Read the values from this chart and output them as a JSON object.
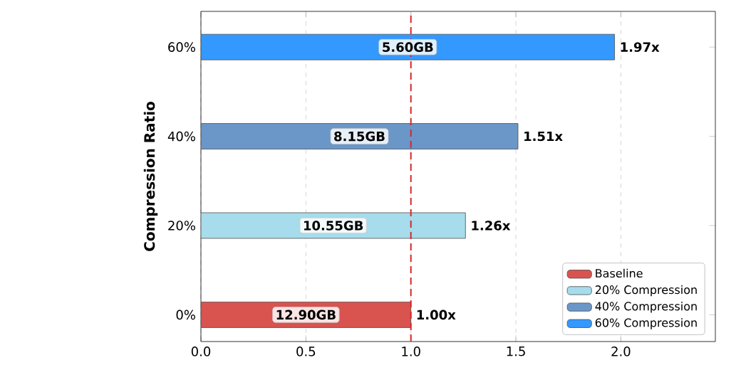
{
  "chart_data": {
    "type": "bar",
    "orientation": "horizontal",
    "categories": [
      "60%",
      "40%",
      "20%",
      "0%"
    ],
    "series": [
      {
        "name": "Baseline",
        "color": "#d9534f",
        "values": [
          null,
          null,
          null,
          1.0
        ],
        "value_labels": [
          null,
          null,
          null,
          "1.00x"
        ]
      },
      {
        "name": "20% Compression",
        "color": "#a6dcec",
        "values": [
          null,
          null,
          1.26,
          null
        ],
        "value_labels": [
          null,
          null,
          "1.26x",
          null
        ]
      },
      {
        "name": "40% Compression",
        "color": "#6b96c8",
        "values": [
          null,
          1.51,
          null,
          null
        ],
        "value_labels": [
          null,
          "1.51x",
          null,
          null
        ]
      },
      {
        "name": "60% Compression",
        "color": "#3399ff",
        "values": [
          1.97,
          null,
          null,
          null
        ],
        "value_labels": [
          "1.97x",
          null,
          null,
          null
        ]
      }
    ],
    "xlim": [
      0,
      2.45
    ],
    "xticks": [
      {
        "value": 0,
        "label": "0.0"
      },
      {
        "value": 0.5,
        "label": "0.5"
      },
      {
        "value": 1,
        "label": "1.0"
      },
      {
        "value": 1.5,
        "label": "1.5"
      },
      {
        "value": 2,
        "label": "2.0"
      }
    ],
    "ylabel": "Compression Ratio",
    "grid": "x",
    "legend": "bottom right",
    "ref_lines": [
      {
        "axis": "x",
        "value": 1.0,
        "color": "#d62728",
        "line_style": "dashed"
      }
    ],
    "annotations": [
      "5.60GB",
      "8.15GB",
      "10.55GB",
      "12.90GB"
    ]
  }
}
